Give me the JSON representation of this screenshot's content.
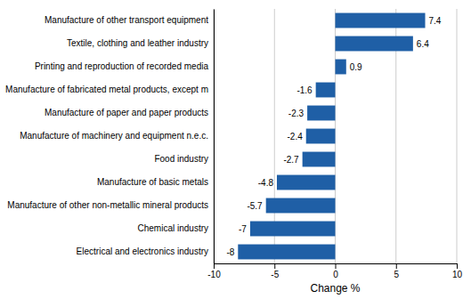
{
  "chart_data": {
    "type": "bar",
    "orientation": "horizontal",
    "categories": [
      "Electrical and electronics industry",
      "Chemical industry",
      "Manufacture of other non-metallic mineral products",
      "Manufacture of basic metals",
      "Food industry",
      "Manufacture of machinery and equipment n.e.c.",
      "Manufacture of paper and paper products",
      "Manufacture of fabricated metal products, except m",
      "Printing and reproduction of recorded media",
      "Textile, clothing and leather industry",
      "Manufacture of other transport equipment"
    ],
    "values": [
      -8,
      -7,
      -5.7,
      -4.8,
      -2.7,
      -2.4,
      -2.3,
      -1.6,
      0.9,
      6.4,
      7.4
    ],
    "color": "#1F5FA6",
    "xlabel": "Change %",
    "xlim": [
      -10,
      10
    ],
    "xticks": [
      -10,
      -5,
      0,
      5,
      10
    ],
    "grid": true,
    "data_labels": true
  }
}
